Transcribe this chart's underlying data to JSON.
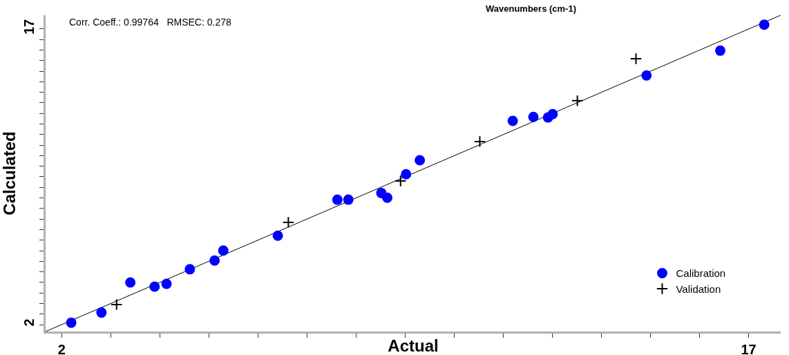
{
  "chart_data": {
    "type": "scatter",
    "xlabel": "Actual",
    "ylabel": "Calculated",
    "annotations": [
      "Corr. Coeff.: 0.99764   RMSEC: 0.278",
      "Wavenumbers (cm-1)"
    ],
    "xlim": [
      1.65,
      17.7
    ],
    "ylim": [
      1.65,
      17.7
    ],
    "xticks": [
      2,
      {
        "value": 3.07,
        "label": null
      },
      {
        "value": 4.14,
        "label": null
      },
      {
        "value": 5.21,
        "label": null
      },
      {
        "value": 6.29,
        "label": null
      },
      {
        "value": 7.36,
        "label": null
      },
      {
        "value": 8.43,
        "label": null
      },
      {
        "value": 9.5,
        "label": null
      },
      {
        "value": 10.57,
        "label": null
      },
      {
        "value": 11.64,
        "label": null
      },
      {
        "value": 12.71,
        "label": null
      },
      {
        "value": 13.79,
        "label": null
      },
      {
        "value": 14.86,
        "label": null
      },
      {
        "value": 15.93,
        "label": null
      },
      17
    ],
    "yticks": [
      2,
      {
        "value": 2.54,
        "label": null
      },
      {
        "value": 3.07,
        "label": null
      },
      {
        "value": 3.61,
        "label": null
      },
      {
        "value": 4.14,
        "label": null
      },
      {
        "value": 4.68,
        "label": null
      },
      {
        "value": 5.21,
        "label": null
      },
      {
        "value": 5.75,
        "label": null
      },
      {
        "value": 6.29,
        "label": null
      },
      {
        "value": 6.82,
        "label": null
      },
      {
        "value": 7.36,
        "label": null
      },
      {
        "value": 7.89,
        "label": null
      },
      {
        "value": 8.43,
        "label": null
      },
      {
        "value": 8.96,
        "label": null
      },
      {
        "value": 9.5,
        "label": null
      },
      {
        "value": 10.04,
        "label": null
      },
      {
        "value": 10.57,
        "label": null
      },
      {
        "value": 11.11,
        "label": null
      },
      {
        "value": 11.64,
        "label": null
      },
      {
        "value": 12.18,
        "label": null
      },
      {
        "value": 12.71,
        "label": null
      },
      {
        "value": 13.25,
        "label": null
      },
      {
        "value": 13.79,
        "label": null
      },
      {
        "value": 14.32,
        "label": null
      },
      {
        "value": 14.86,
        "label": null
      },
      {
        "value": 15.39,
        "label": null
      },
      {
        "value": 15.93,
        "label": null
      },
      {
        "value": 16.46,
        "label": null
      },
      17
    ],
    "grid": false,
    "legend": "bottom right",
    "series": [
      {
        "type": "line",
        "color": "#000000",
        "line_style": "solid",
        "marker": "none",
        "x": [
          1.65,
          17.7
        ],
        "values": [
          1.65,
          17.7
        ]
      },
      {
        "name": "Calibration",
        "color": "#0000ff",
        "marker": "circle",
        "x": [
          2.21,
          2.87,
          3.5,
          4.03,
          4.29,
          4.8,
          5.34,
          5.53,
          6.72,
          8.02,
          8.26,
          8.98,
          9.11,
          9.52,
          9.82,
          11.85,
          12.3,
          12.62,
          12.72,
          14.77,
          16.38,
          17.34
        ],
        "values": [
          2.1,
          2.61,
          4.14,
          3.93,
          4.07,
          4.81,
          5.25,
          5.76,
          6.51,
          8.34,
          8.34,
          8.68,
          8.44,
          9.63,
          10.34,
          12.34,
          12.54,
          12.51,
          12.68,
          14.64,
          15.9,
          17.22
        ]
      },
      {
        "name": "Validation",
        "color": "#000000",
        "marker": "cross",
        "x": [
          3.2,
          6.95,
          9.4,
          11.13,
          13.26,
          14.54
        ],
        "values": [
          3.02,
          7.19,
          9.29,
          11.29,
          13.36,
          15.49
        ]
      }
    ]
  }
}
